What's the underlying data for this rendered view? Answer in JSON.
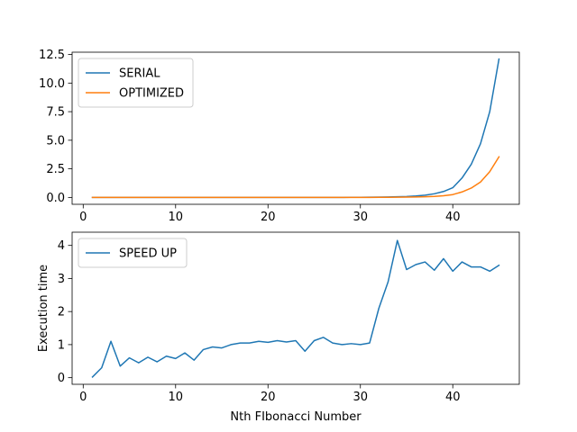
{
  "chart_data": [
    {
      "type": "line",
      "x": [
        1,
        2,
        3,
        4,
        5,
        6,
        7,
        8,
        9,
        10,
        11,
        12,
        13,
        14,
        15,
        16,
        17,
        18,
        19,
        20,
        21,
        22,
        23,
        24,
        25,
        26,
        27,
        28,
        29,
        30,
        31,
        32,
        33,
        34,
        35,
        36,
        37,
        38,
        39,
        40,
        41,
        42,
        43,
        44,
        45
      ],
      "series": [
        {
          "name": "SERIAL",
          "color": "#1f77b4",
          "values": [
            0,
            0,
            0,
            0,
            0,
            0,
            0,
            0,
            0,
            0,
            0,
            0,
            0,
            0,
            0,
            0,
            0,
            0,
            0,
            0,
            0,
            0,
            0,
            0,
            0,
            0,
            0,
            0,
            0.01,
            0.01,
            0.02,
            0.03,
            0.04,
            0.06,
            0.08,
            0.13,
            0.2,
            0.32,
            0.52,
            0.85,
            1.7,
            2.9,
            4.7,
            7.5,
            12.1
          ]
        },
        {
          "name": "OPTIMIZED",
          "color": "#ff7f0e",
          "values": [
            0,
            0,
            0,
            0,
            0,
            0,
            0,
            0,
            0,
            0,
            0,
            0,
            0,
            0,
            0,
            0,
            0,
            0,
            0,
            0,
            0,
            0,
            0,
            0,
            0,
            0,
            0,
            0,
            0,
            0,
            0,
            0.01,
            0.01,
            0.02,
            0.03,
            0.04,
            0.06,
            0.09,
            0.15,
            0.25,
            0.48,
            0.82,
            1.35,
            2.25,
            3.55
          ]
        }
      ],
      "xlim": [
        -1.2,
        47.2
      ],
      "ylim": [
        -0.6,
        12.7
      ],
      "xticks": [
        0,
        10,
        20,
        30,
        40
      ],
      "xtick_labels": [
        "0",
        "10",
        "20",
        "30",
        "40"
      ],
      "yticks": [
        0,
        2.5,
        5,
        7.5,
        10,
        12.5
      ],
      "ytick_labels": [
        "0.0",
        "2.5",
        "5.0",
        "7.5",
        "10.0",
        "12.5"
      ],
      "xlabel": "",
      "ylabel": "",
      "legend": "upper-left",
      "grid": false
    },
    {
      "type": "line",
      "x": [
        1,
        2,
        3,
        4,
        5,
        6,
        7,
        8,
        9,
        10,
        11,
        12,
        13,
        14,
        15,
        16,
        17,
        18,
        19,
        20,
        21,
        22,
        23,
        24,
        25,
        26,
        27,
        28,
        29,
        30,
        31,
        32,
        33,
        34,
        35,
        36,
        37,
        38,
        39,
        40,
        41,
        42,
        43,
        44,
        45
      ],
      "series": [
        {
          "name": "SPEED UP",
          "color": "#1f77b4",
          "values": [
            0.02,
            0.3,
            1.1,
            0.35,
            0.6,
            0.45,
            0.62,
            0.48,
            0.65,
            0.58,
            0.75,
            0.53,
            0.85,
            0.93,
            0.9,
            1.0,
            1.05,
            1.05,
            1.1,
            1.07,
            1.12,
            1.08,
            1.12,
            0.8,
            1.12,
            1.22,
            1.05,
            1.0,
            1.03,
            1.0,
            1.05,
            2.1,
            2.9,
            4.15,
            3.27,
            3.42,
            3.5,
            3.25,
            3.6,
            3.22,
            3.5,
            3.35,
            3.35,
            3.22,
            3.4
          ]
        }
      ],
      "xlim": [
        -1.2,
        47.2
      ],
      "ylim": [
        -0.2,
        4.4
      ],
      "xticks": [
        0,
        10,
        20,
        30,
        40
      ],
      "xtick_labels": [
        "0",
        "10",
        "20",
        "30",
        "40"
      ],
      "yticks": [
        0,
        1,
        2,
        3,
        4
      ],
      "ytick_labels": [
        "0",
        "1",
        "2",
        "3",
        "4"
      ],
      "xlabel": "Nth FIbonacci Number",
      "ylabel": "Execution time",
      "legend": "upper-left",
      "grid": false
    }
  ]
}
